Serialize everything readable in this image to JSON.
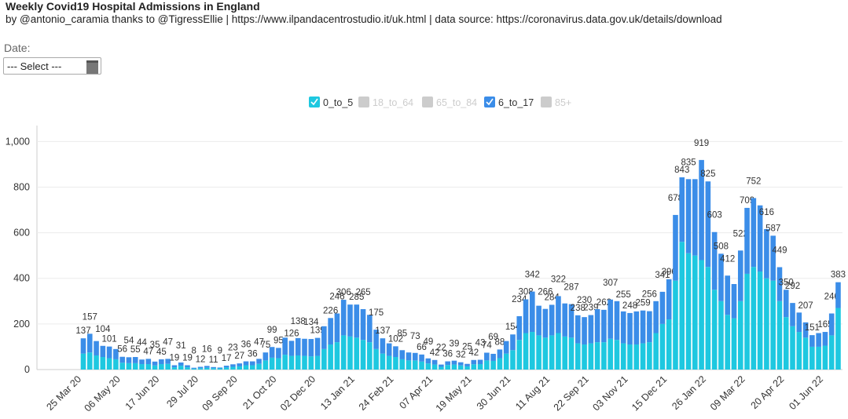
{
  "chart_data": {
    "type": "stacked-bar",
    "title": "Weekly Covid19 Hospital Admissions in England",
    "subtitle": "by @antonio_caramia thanks to @TigressEllie | https://www.ilpandacentrostudio.it/uk.html | data source: https://coronavirus.data.gov.uk/details/download",
    "date_label": "Date:",
    "select_placeholder": "--- Select ---",
    "categories": [
      "25 Mar 20",
      null,
      null,
      null,
      null,
      null,
      "06 May 20",
      null,
      null,
      null,
      null,
      null,
      "17 Jun 20",
      null,
      null,
      null,
      null,
      null,
      "29 Jul 20",
      null,
      null,
      null,
      null,
      null,
      "09 Sep 20",
      null,
      null,
      null,
      null,
      null,
      "21 Oct 20",
      null,
      null,
      null,
      null,
      null,
      "02 Dec 20",
      null,
      null,
      null,
      null,
      null,
      "13 Jan 21",
      null,
      null,
      null,
      null,
      null,
      "24 Feb 21",
      null,
      null,
      null,
      null,
      null,
      "07 Apr 21",
      null,
      null,
      null,
      null,
      null,
      "19 May 21",
      null,
      null,
      null,
      null,
      null,
      "30 Jun 21",
      null,
      null,
      null,
      null,
      null,
      "11 Aug 21",
      null,
      null,
      null,
      null,
      null,
      "22 Sep 21",
      null,
      null,
      null,
      null,
      null,
      "03 Nov 21",
      null,
      null,
      null,
      null,
      null,
      "15 Dec 21",
      null,
      null,
      null,
      null,
      null,
      "26 Jan 22",
      null,
      null,
      null,
      null,
      null,
      "09 Mar 22",
      null,
      null,
      null,
      null,
      null,
      "20 Apr 22",
      null,
      null,
      null,
      null,
      null,
      "01 Jun 22",
      null,
      null
    ],
    "series": [
      {
        "name": "0_to_5",
        "color": "#1ec8e0",
        "visible": true,
        "values": [
          70,
          75,
          62,
          55,
          50,
          45,
          30,
          28,
          28,
          24,
          24,
          18,
          24,
          25,
          10,
          17,
          10,
          4,
          6,
          8,
          6,
          5,
          9,
          12,
          14,
          19,
          19,
          25,
          40,
          52,
          50,
          65,
          60,
          62,
          60,
          58,
          60,
          90,
          110,
          120,
          150,
          145,
          140,
          130,
          120,
          90,
          70,
          60,
          55,
          45,
          40,
          40,
          35,
          27,
          22,
          12,
          20,
          22,
          18,
          14,
          23,
          24,
          40,
          38,
          50,
          70,
          85,
          130,
          160,
          165,
          150,
          140,
          150,
          160,
          145,
          140,
          115,
          110,
          115,
          120,
          120,
          135,
          130,
          115,
          110,
          110,
          115,
          120,
          160,
          200,
          220,
          390,
          560,
          510,
          500,
          480,
          450,
          350,
          300,
          240,
          225,
          300,
          420,
          450,
          430,
          400,
          390,
          300,
          230,
          190,
          165,
          140,
          100,
          100,
          105,
          150,
          270
        ]
      },
      {
        "name": "18_to_64",
        "color": "#cccccc",
        "visible": false
      },
      {
        "name": "65_to_84",
        "color": "#cccccc",
        "visible": false
      },
      {
        "name": "6_to_17",
        "color": "#3b8de8",
        "visible": true,
        "values": [
          67,
          82,
          63,
          49,
          51,
          45,
          26,
          26,
          27,
          20,
          23,
          17,
          21,
          22,
          9,
          14,
          9,
          4,
          6,
          8,
          5,
          4,
          8,
          11,
          13,
          17,
          17,
          22,
          35,
          47,
          45,
          75,
          66,
          76,
          75,
          76,
          79,
          100,
          116,
          126,
          156,
          140,
          145,
          135,
          120,
          85,
          67,
          55,
          47,
          40,
          35,
          33,
          31,
          22,
          20,
          10,
          16,
          17,
          14,
          11,
          19,
          19,
          34,
          31,
          38,
          55,
          69,
          104,
          148,
          177,
          130,
          126,
          134,
          162,
          145,
          147,
          123,
          120,
          124,
          145,
          142,
          172,
          170,
          140,
          138,
          145,
          144,
          136,
          140,
          141,
          176,
          288,
          283,
          325,
          335,
          439,
          375,
          253,
          208,
          172,
          150,
          222,
          289,
          302,
          290,
          216,
          197,
          149,
          120,
          102,
          85,
          67,
          51,
          60,
          60,
          96,
          113
        ]
      },
      {
        "name": "85+",
        "color": "#cccccc",
        "visible": false
      }
    ],
    "total_labels": [
      137,
      157,
      null,
      104,
      101,
      null,
      56,
      54,
      55,
      44,
      47,
      35,
      45,
      47,
      19,
      31,
      19,
      8,
      12,
      16,
      11,
      9,
      17,
      23,
      27,
      36,
      36,
      47,
      75,
      99,
      95,
      null,
      126,
      138,
      null,
      134,
      139,
      null,
      226,
      246,
      306,
      null,
      285,
      265,
      null,
      175,
      137,
      null,
      102,
      85,
      null,
      73,
      66,
      49,
      42,
      22,
      36,
      39,
      32,
      25,
      42,
      43,
      74,
      69,
      88,
      null,
      154,
      234,
      308,
      342,
      null,
      266,
      284,
      322,
      null,
      287,
      238,
      230,
      239,
      null,
      262,
      307,
      null,
      255,
      248,
      null,
      259,
      256,
      null,
      341,
      396,
      678,
      843,
      835,
      null,
      919,
      825,
      603,
      508,
      412,
      null,
      522,
      709,
      752,
      null,
      616,
      587,
      449,
      350,
      292,
      null,
      207,
      151,
      null,
      165,
      246,
      383
    ],
    "ylim": [
      0,
      1070
    ],
    "yticks": [
      0,
      200,
      400,
      600,
      800,
      {
        "value": 1000,
        "label": "1,000"
      }
    ],
    "grid": true
  }
}
